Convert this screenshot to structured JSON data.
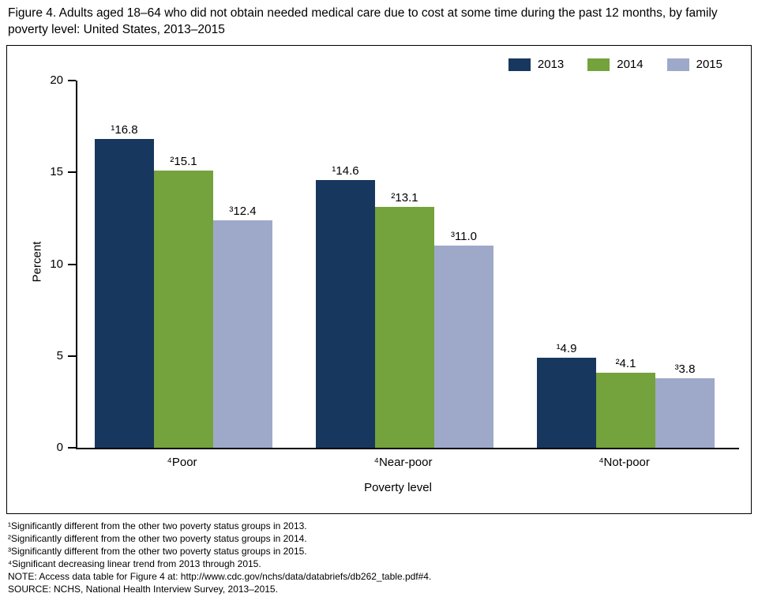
{
  "title": "Figure 4. Adults aged 18–64 who did not obtain needed medical care due to cost at some time during the past 12 months, by family poverty level: United States, 2013–2015",
  "chart_data": {
    "type": "bar",
    "title": "Adults aged 18–64 who did not obtain needed medical care due to cost, by family poverty level: United States, 2013–2015",
    "categories": [
      "Poor",
      "Near-poor",
      "Not-poor"
    ],
    "category_display": [
      "⁴Poor",
      "⁴Near-poor",
      "⁴Not-poor"
    ],
    "series": [
      {
        "name": "2013",
        "color": "#17375E",
        "values": [
          16.8,
          14.6,
          4.9
        ],
        "value_labels": [
          "¹16.8",
          "¹14.6",
          "¹4.9"
        ]
      },
      {
        "name": "2014",
        "color": "#74A23C",
        "values": [
          15.1,
          13.1,
          4.1
        ],
        "value_labels": [
          "²15.1",
          "²13.1",
          "²4.1"
        ]
      },
      {
        "name": "2015",
        "color": "#9EA9C9",
        "values": [
          12.4,
          11.0,
          3.8
        ],
        "value_labels": [
          "³12.4",
          "³11.0",
          "³3.8"
        ]
      }
    ],
    "xlabel": "Poverty level",
    "ylabel": "Percent",
    "ylim": [
      0,
      20
    ],
    "yticks": [
      0,
      5,
      10,
      15,
      20
    ],
    "legend_position": "top-right",
    "grid": false,
    "axis_color": "#000000"
  },
  "footnotes": [
    "¹Significantly different from the other two poverty status groups in 2013.",
    "²Significantly different from the other two poverty status groups in 2014.",
    "³Significantly different from the other two poverty status groups in 2015.",
    "⁴Significant decreasing linear trend from 2013 through 2015.",
    "NOTE: Access data table for Figure 4 at: http://www.cdc.gov/nchs/data/databriefs/db262_table.pdf#4.",
    "SOURCE: NCHS, National Health Interview Survey, 2013–2015."
  ]
}
